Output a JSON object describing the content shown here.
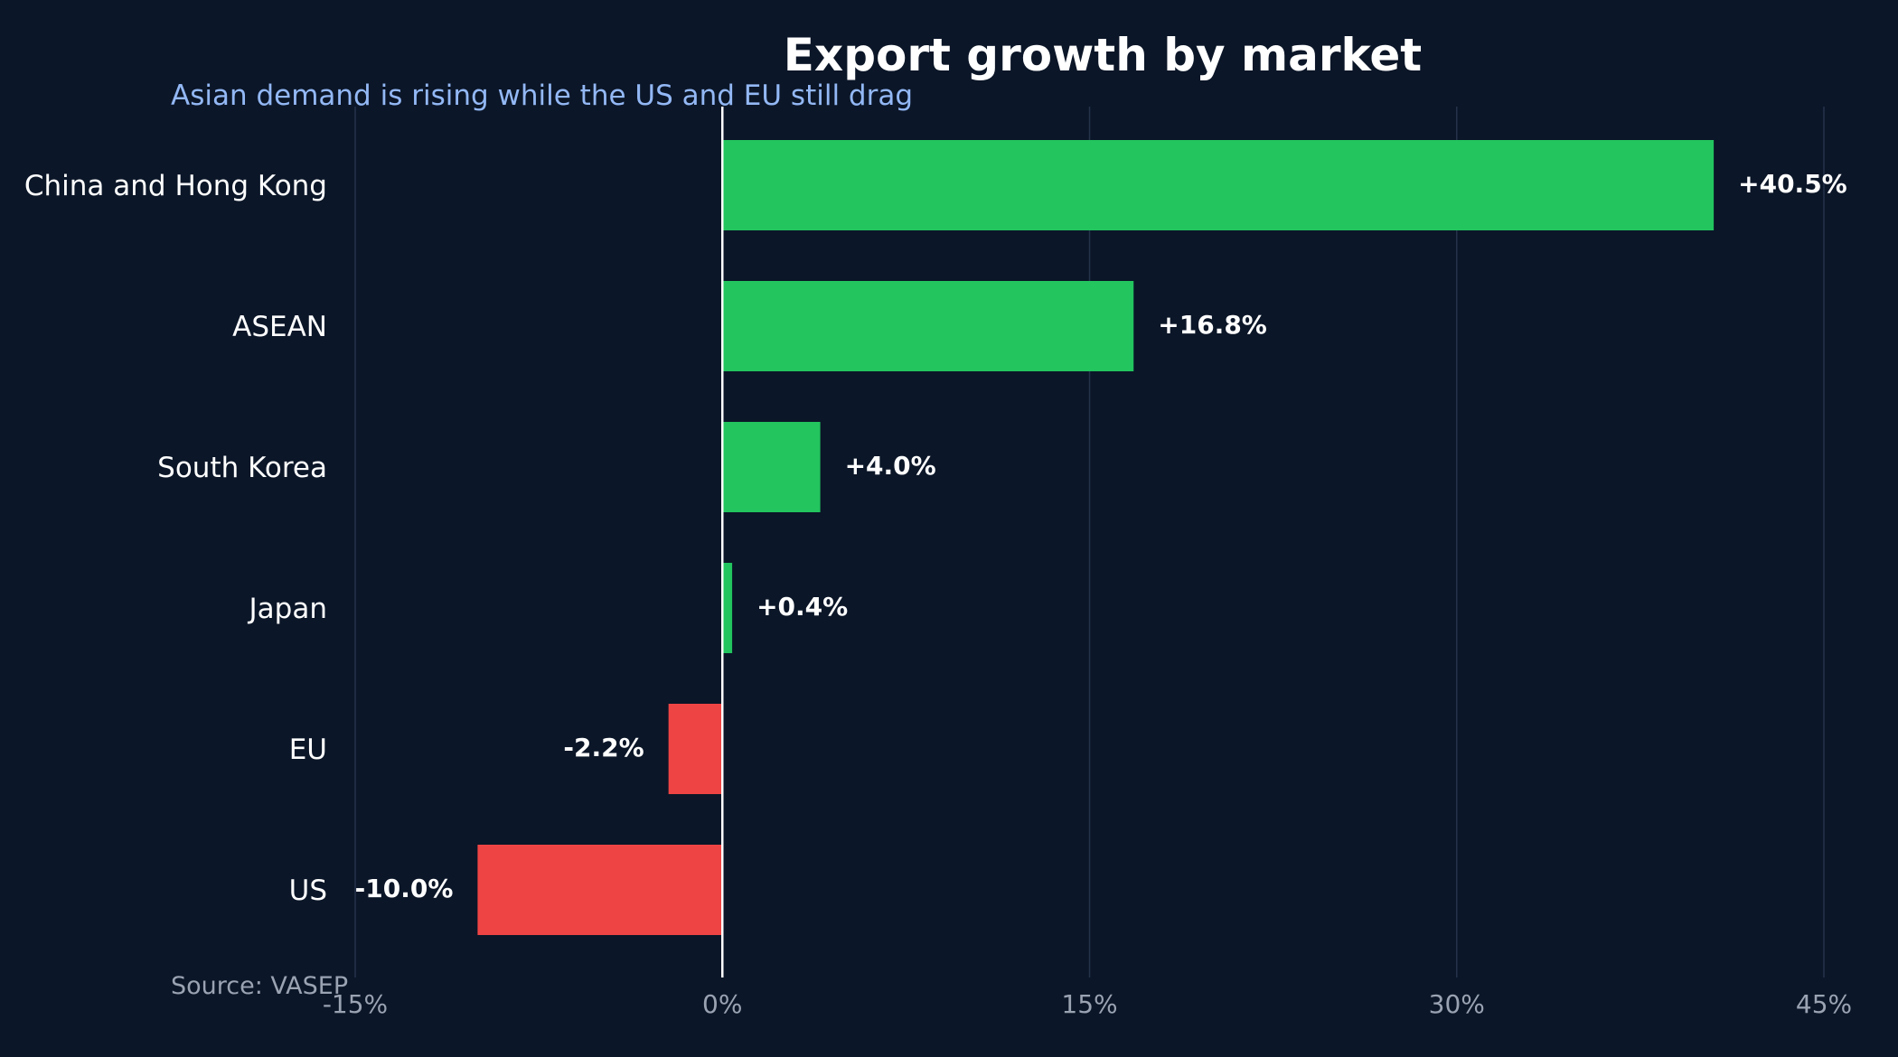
{
  "chart_data": {
    "type": "bar",
    "orientation": "horizontal",
    "title": "Export growth by market",
    "subtitle": "Asian demand is rising while the US and EU still drag",
    "source": "Source: VASEP",
    "categories": [
      "China and Hong Kong",
      "ASEAN",
      "South Korea",
      "Japan",
      "EU",
      "US"
    ],
    "values": [
      40.5,
      16.8,
      4.0,
      0.4,
      -2.2,
      -10.0
    ],
    "value_labels": [
      "+40.5%",
      "+16.8%",
      "+4.0%",
      "+0.4%",
      "-2.2%",
      "-10.0%"
    ],
    "xlim": [
      -15,
      45
    ],
    "xticks": [
      -15,
      0,
      15,
      30,
      45
    ],
    "xtick_labels": [
      "-15%",
      "0%",
      "15%",
      "30%",
      "45%"
    ],
    "xlabel": "",
    "ylabel": "",
    "grid": true,
    "legend": "none",
    "colors": {
      "background": "#0b1628",
      "positive": "#22c55e",
      "negative": "#ef4444",
      "grid": "#24324a",
      "zero_line": "#ffffff",
      "subtitle": "#93b8f5",
      "muted_text": "#9aa3b2"
    }
  }
}
